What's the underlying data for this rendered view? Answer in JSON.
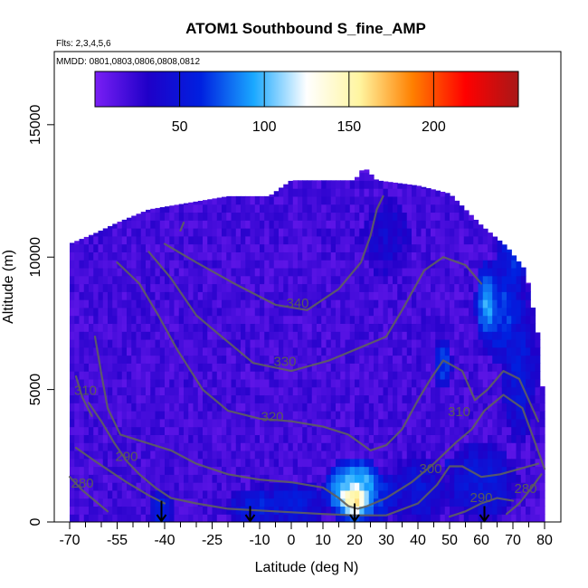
{
  "chart_data": {
    "type": "heatmap",
    "title": "ATOM1 Southbound S_fine_AMP",
    "annotations": [
      "Flts: 2,3,4,5,6",
      "MMDD: 0801,0803,0806,0808,0812"
    ],
    "xlabel": "Latitude (deg N)",
    "ylabel": "Altitude (m)",
    "xlim": [
      -70,
      80
    ],
    "ylim": [
      0,
      18000
    ],
    "x_ticks": [
      -70,
      -55,
      -40,
      -25,
      -10,
      0,
      10,
      20,
      30,
      40,
      50,
      60,
      70,
      80
    ],
    "x_tick_labels": [
      "-70",
      "-55",
      "-40",
      "-25",
      "-10",
      "0",
      "10",
      "20",
      "30",
      "40",
      "50",
      "60",
      "70",
      "80"
    ],
    "y_ticks": [
      0,
      5000,
      10000,
      15000
    ],
    "y_tick_labels": [
      "0",
      "5000",
      "10000",
      "15000"
    ],
    "colorbar": {
      "range": [
        0,
        250
      ],
      "ticks": [
        50,
        100,
        150,
        200
      ],
      "tick_labels": [
        "50",
        "100",
        "150",
        "200"
      ],
      "colors": [
        "#7a1ff5",
        "#1f00c8",
        "#0020e0",
        "#1aa8ff",
        "#ffffff",
        "#fff5a0",
        "#ff8000",
        "#ff0000",
        "#a81818"
      ]
    },
    "data_coverage_top": [
      {
        "lat": -70,
        "alt": 10500
      },
      {
        "lat": -62,
        "alt": 10900
      },
      {
        "lat": -55,
        "alt": 11300
      },
      {
        "lat": -45,
        "alt": 11800
      },
      {
        "lat": -35,
        "alt": 12000
      },
      {
        "lat": -20,
        "alt": 12300
      },
      {
        "lat": -7,
        "alt": 12300
      },
      {
        "lat": 0,
        "alt": 12900
      },
      {
        "lat": 20,
        "alt": 12900
      },
      {
        "lat": 23,
        "alt": 13400
      },
      {
        "lat": 27,
        "alt": 12900
      },
      {
        "lat": 40,
        "alt": 12700
      },
      {
        "lat": 50,
        "alt": 12400
      },
      {
        "lat": 60,
        "alt": 11200
      },
      {
        "lat": 68,
        "alt": 10400
      },
      {
        "lat": 74,
        "alt": 9500
      },
      {
        "lat": 78,
        "alt": 7000
      },
      {
        "lat": 80,
        "alt": 4000
      }
    ],
    "background_value": 10,
    "features": [
      {
        "lat": 20,
        "alt": 900,
        "value": 150,
        "rlat": 6,
        "ralt": 700
      },
      {
        "lat": 20,
        "alt": 1200,
        "value": 100,
        "rlat": 10,
        "ralt": 1300
      },
      {
        "lat": 25,
        "alt": 1000,
        "value": 60,
        "rlat": 10,
        "ralt": 1000
      },
      {
        "lat": -41,
        "alt": 500,
        "value": 55,
        "rlat": 4,
        "ralt": 800
      },
      {
        "lat": -10,
        "alt": 600,
        "value": 50,
        "rlat": 10,
        "ralt": 800
      },
      {
        "lat": 0,
        "alt": 700,
        "value": 45,
        "rlat": 12,
        "ralt": 900
      },
      {
        "lat": 40,
        "alt": 1200,
        "value": 40,
        "rlat": 10,
        "ralt": 1400
      },
      {
        "lat": 60,
        "alt": 1500,
        "value": 45,
        "rlat": 12,
        "ralt": 1500
      },
      {
        "lat": 62,
        "alt": 8300,
        "value": 85,
        "rlat": 4,
        "ralt": 1500
      },
      {
        "lat": 66,
        "alt": 8000,
        "value": 60,
        "rlat": 8,
        "ralt": 2000
      },
      {
        "lat": 70,
        "alt": 10000,
        "value": 55,
        "rlat": 5,
        "ralt": 1500
      },
      {
        "lat": 72,
        "alt": 6000,
        "value": 45,
        "rlat": 6,
        "ralt": 3000
      },
      {
        "lat": 48,
        "alt": 6000,
        "value": 60,
        "rlat": 3,
        "ralt": 1000
      },
      {
        "lat": 30,
        "alt": 10800,
        "value": 30,
        "rlat": 8,
        "ralt": 1500
      },
      {
        "lat": 48.5,
        "alt": 2200,
        "value": 220,
        "rlat": 0.7,
        "ralt": 300
      },
      {
        "lat": 50,
        "alt": 2200,
        "value": 45,
        "rlat": 1.5,
        "ralt": 300
      }
    ],
    "contours": [
      {
        "label": "340",
        "label_at": {
          "lat": 2,
          "alt": 8100
        },
        "points": [
          [
            -40,
            10500
          ],
          [
            -30,
            9800
          ],
          [
            -18,
            9000
          ],
          [
            -5,
            8200
          ],
          [
            5,
            8000
          ],
          [
            15,
            8800
          ],
          [
            22,
            9800
          ],
          [
            25,
            10800
          ],
          [
            27,
            11800
          ],
          [
            29,
            12300
          ]
        ]
      },
      {
        "label": "330",
        "label_at": {
          "lat": -2,
          "alt": 5900
        },
        "points": [
          [
            -45,
            10200
          ],
          [
            -38,
            9200
          ],
          [
            -30,
            7800
          ],
          [
            -22,
            7000
          ],
          [
            -12,
            6000
          ],
          [
            0,
            5700
          ],
          [
            12,
            6100
          ],
          [
            22,
            6600
          ],
          [
            30,
            7000
          ],
          [
            35,
            8000
          ],
          [
            42,
            9500
          ],
          [
            48,
            10000
          ],
          [
            55,
            9700
          ],
          [
            60,
            9000
          ]
        ]
      },
      {
        "label": "320",
        "label_at": {
          "lat": -6,
          "alt": 3800
        },
        "points": [
          [
            -55,
            9800
          ],
          [
            -48,
            9000
          ],
          [
            -42,
            7800
          ],
          [
            -36,
            6500
          ],
          [
            -28,
            5000
          ],
          [
            -20,
            4200
          ],
          [
            -10,
            3900
          ],
          [
            0,
            3800
          ],
          [
            10,
            3600
          ],
          [
            18,
            3300
          ],
          [
            25,
            2700
          ],
          [
            30,
            2900
          ],
          [
            35,
            3500
          ],
          [
            40,
            4600
          ],
          [
            44,
            5400
          ],
          [
            48,
            6100
          ],
          [
            54,
            5700
          ],
          [
            58,
            4600
          ],
          [
            62,
            5000
          ],
          [
            67,
            5700
          ],
          [
            72,
            5400
          ],
          [
            78,
            3800
          ]
        ]
      },
      {
        "label": "310",
        "label_at": {
          "lat": 53,
          "alt": 4000
        },
        "points": [
          [
            -62,
            7000
          ],
          [
            -60,
            5600
          ],
          [
            -58,
            4300
          ],
          [
            -54,
            3300
          ],
          [
            -46,
            3000
          ],
          [
            -38,
            2700
          ],
          [
            -30,
            2200
          ],
          [
            -20,
            1800
          ],
          [
            -10,
            1600
          ],
          [
            0,
            1500
          ],
          [
            10,
            1300
          ],
          [
            15,
            900
          ],
          [
            18,
            600
          ],
          [
            21,
            500
          ],
          [
            24,
            600
          ],
          [
            30,
            900
          ],
          [
            38,
            1500
          ],
          [
            45,
            2200
          ],
          [
            52,
            3000
          ],
          [
            57,
            3500
          ],
          [
            61,
            4200
          ],
          [
            67,
            4800
          ],
          [
            73,
            4300
          ],
          [
            77,
            3000
          ],
          [
            80,
            2000
          ]
        ]
      },
      {
        "label": "300",
        "label_at": {
          "lat": 44,
          "alt": 1850
        },
        "points": [
          [
            -64,
            4500
          ],
          [
            -60,
            3800
          ],
          [
            -56,
            3000
          ],
          [
            -52,
            2300
          ],
          [
            -48,
            1800
          ],
          [
            -43,
            1300
          ],
          [
            -38,
            900
          ],
          [
            -30,
            700
          ],
          [
            -20,
            500
          ],
          [
            -5,
            400
          ],
          [
            10,
            300
          ],
          [
            20,
            250
          ],
          [
            30,
            250
          ],
          [
            40,
            700
          ],
          [
            46,
            1400
          ],
          [
            50,
            2100
          ],
          [
            54,
            2100
          ],
          [
            60,
            1700
          ],
          [
            66,
            1800
          ],
          [
            72,
            2000
          ],
          [
            78,
            2200
          ]
        ]
      },
      {
        "label": "290",
        "label_at": {
          "lat": -52,
          "alt": 2300
        },
        "points": [
          [
            -68,
            2800
          ],
          [
            -62,
            2300
          ],
          [
            -57,
            1900
          ],
          [
            -52,
            1500
          ],
          [
            -45,
            1000
          ],
          [
            -40,
            700
          ]
        ]
      },
      {
        "label": "280",
        "label_at": {
          "lat": -66,
          "alt": 1300
        },
        "points": [
          [
            -70,
            1700
          ],
          [
            -66,
            1200
          ],
          [
            -62,
            800
          ],
          [
            -58,
            400
          ]
        ]
      },
      {
        "label": "290",
        "label_at": {
          "lat": 60,
          "alt": 750
        },
        "points": [
          [
            50,
            200
          ],
          [
            55,
            400
          ],
          [
            60,
            700
          ],
          [
            65,
            900
          ],
          [
            70,
            800
          ]
        ]
      },
      {
        "label": "280",
        "label_at": {
          "lat": 74,
          "alt": 1100
        },
        "points": [
          [
            68,
            300
          ],
          [
            72,
            700
          ],
          [
            76,
            1300
          ],
          [
            79,
            1800
          ]
        ]
      },
      {
        "label": "310",
        "label_at": {
          "lat": -65,
          "alt": 4800
        },
        "points": [
          [
            -68,
            5500
          ],
          [
            -66,
            4700
          ],
          [
            -63,
            4000
          ]
        ]
      },
      {
        "label": "",
        "label_at": null,
        "points": [
          [
            -35,
            11000
          ],
          [
            -34,
            11300
          ]
        ]
      }
    ],
    "markers": [
      {
        "lat": -41,
        "alt": 800
      },
      {
        "lat": -13,
        "alt": 600
      },
      {
        "lat": 20,
        "alt": 700
      },
      {
        "lat": 61,
        "alt": 600
      }
    ]
  }
}
